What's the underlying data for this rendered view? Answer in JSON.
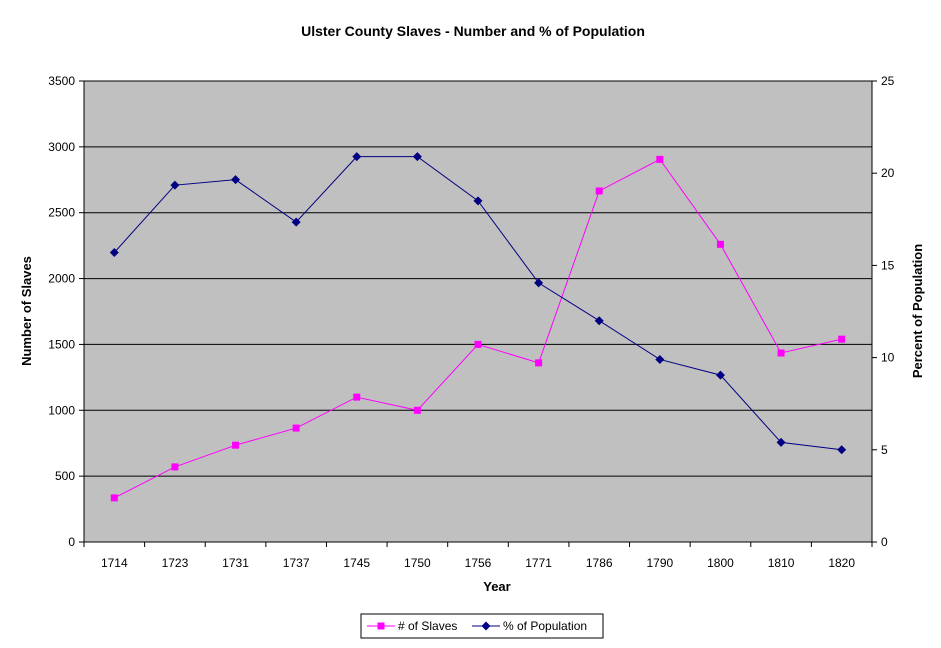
{
  "chart_data": {
    "type": "line",
    "title": "Ulster County Slaves - Number and % of Population",
    "xlabel": "Year",
    "ylabel": "Number of Slaves",
    "y2label": "Percent of Population",
    "categories": [
      "1714",
      "1723",
      "1731",
      "1737",
      "1745",
      "1750",
      "1756",
      "1771",
      "1786",
      "1790",
      "1800",
      "1810",
      "1820"
    ],
    "ylim": [
      0,
      3500
    ],
    "y2lim": [
      0,
      25
    ],
    "yticks": [
      "0",
      "500",
      "1000",
      "1500",
      "2000",
      "2500",
      "3000",
      "3500"
    ],
    "y2ticks": [
      "0",
      "5",
      "10",
      "15",
      "20",
      "25"
    ],
    "grid": true,
    "legend_position": "bottom",
    "plot_background": "#c0c0c0",
    "series": [
      {
        "name": "# of Slaves",
        "axis": "left",
        "color": "#ff00ff",
        "marker": "square",
        "values": [
          335,
          570,
          735,
          865,
          1100,
          1000,
          1500,
          1360,
          2665,
          2905,
          2260,
          1435,
          1540
        ]
      },
      {
        "name": "% of Population",
        "axis": "right",
        "color": "#000080",
        "marker": "diamond",
        "values": [
          15.7,
          19.35,
          19.65,
          17.35,
          20.9,
          20.9,
          18.5,
          14.05,
          12.0,
          9.9,
          9.05,
          5.4,
          5.0
        ]
      }
    ]
  }
}
